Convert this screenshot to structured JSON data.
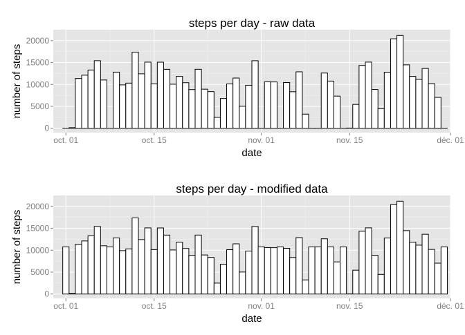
{
  "colors": {
    "panel_background": "#e5e5e5",
    "grid_major": "#ffffff",
    "grid_minor": "#f2f2f2",
    "bar_fill": "#ffffff",
    "bar_outline": "#000000",
    "tick_label": "#7f7f7f"
  },
  "chart_data": [
    {
      "type": "bar",
      "title": "steps per day - raw data",
      "xlabel": "date",
      "ylabel": "number of steps",
      "ylim": [
        -1000,
        22500
      ],
      "xlim": [
        "2012-09-29",
        "2012-12-01"
      ],
      "yticks": [
        0,
        5000,
        10000,
        15000,
        20000
      ],
      "ytick_labels": [
        "0",
        "5000",
        "10000",
        "15000",
        "20000"
      ],
      "xticks": [
        "2012-10-01",
        "2012-10-15",
        "2012-11-01",
        "2012-11-15",
        "2012-12-01"
      ],
      "xtick_labels": [
        "oct. 01",
        "oct. 15",
        "nov. 01",
        "nov. 15",
        "déc. 01"
      ],
      "grid": true,
      "dates": [
        "2012-10-01",
        "2012-10-02",
        "2012-10-03",
        "2012-10-04",
        "2012-10-05",
        "2012-10-06",
        "2012-10-07",
        "2012-10-08",
        "2012-10-09",
        "2012-10-10",
        "2012-10-11",
        "2012-10-12",
        "2012-10-13",
        "2012-10-14",
        "2012-10-15",
        "2012-10-16",
        "2012-10-17",
        "2012-10-18",
        "2012-10-19",
        "2012-10-20",
        "2012-10-21",
        "2012-10-22",
        "2012-10-23",
        "2012-10-24",
        "2012-10-25",
        "2012-10-26",
        "2012-10-27",
        "2012-10-28",
        "2012-10-29",
        "2012-10-30",
        "2012-10-31",
        "2012-11-01",
        "2012-11-02",
        "2012-11-03",
        "2012-11-04",
        "2012-11-05",
        "2012-11-06",
        "2012-11-07",
        "2012-11-08",
        "2012-11-09",
        "2012-11-10",
        "2012-11-11",
        "2012-11-12",
        "2012-11-13",
        "2012-11-14",
        "2012-11-15",
        "2012-11-16",
        "2012-11-17",
        "2012-11-18",
        "2012-11-19",
        "2012-11-20",
        "2012-11-21",
        "2012-11-22",
        "2012-11-23",
        "2012-11-24",
        "2012-11-25",
        "2012-11-26",
        "2012-11-27",
        "2012-11-28",
        "2012-11-29",
        "2012-11-30"
      ],
      "values": [
        0,
        126,
        11352,
        12116,
        13294,
        15420,
        11015,
        0,
        12811,
        9900,
        10304,
        17382,
        12426,
        15098,
        10139,
        15084,
        13452,
        10056,
        11829,
        10395,
        8821,
        13460,
        8918,
        8355,
        2492,
        6778,
        10119,
        11458,
        5018,
        9819,
        15414,
        0,
        10600,
        10571,
        0,
        10439,
        8334,
        12883,
        3219,
        0,
        0,
        12608,
        10765,
        7336,
        0,
        41,
        5441,
        14339,
        15110,
        8841,
        4472,
        12787,
        20427,
        21194,
        14478,
        11834,
        11162,
        13646,
        10183,
        7047,
        0
      ]
    },
    {
      "type": "bar",
      "title": "steps per day - modified data",
      "xlabel": "date",
      "ylabel": "number of steps",
      "ylim": [
        -1000,
        22500
      ],
      "xlim": [
        "2012-09-29",
        "2012-12-01"
      ],
      "yticks": [
        0,
        5000,
        10000,
        15000,
        20000
      ],
      "ytick_labels": [
        "0",
        "5000",
        "10000",
        "15000",
        "20000"
      ],
      "xticks": [
        "2012-10-01",
        "2012-10-15",
        "2012-11-01",
        "2012-11-15",
        "2012-12-01"
      ],
      "xtick_labels": [
        "oct. 01",
        "oct. 15",
        "nov. 01",
        "nov. 15",
        "déc. 01"
      ],
      "grid": true,
      "dates": [
        "2012-10-01",
        "2012-10-02",
        "2012-10-03",
        "2012-10-04",
        "2012-10-05",
        "2012-10-06",
        "2012-10-07",
        "2012-10-08",
        "2012-10-09",
        "2012-10-10",
        "2012-10-11",
        "2012-10-12",
        "2012-10-13",
        "2012-10-14",
        "2012-10-15",
        "2012-10-16",
        "2012-10-17",
        "2012-10-18",
        "2012-10-19",
        "2012-10-20",
        "2012-10-21",
        "2012-10-22",
        "2012-10-23",
        "2012-10-24",
        "2012-10-25",
        "2012-10-26",
        "2012-10-27",
        "2012-10-28",
        "2012-10-29",
        "2012-10-30",
        "2012-10-31",
        "2012-11-01",
        "2012-11-02",
        "2012-11-03",
        "2012-11-04",
        "2012-11-05",
        "2012-11-06",
        "2012-11-07",
        "2012-11-08",
        "2012-11-09",
        "2012-11-10",
        "2012-11-11",
        "2012-11-12",
        "2012-11-13",
        "2012-11-14",
        "2012-11-15",
        "2012-11-16",
        "2012-11-17",
        "2012-11-18",
        "2012-11-19",
        "2012-11-20",
        "2012-11-21",
        "2012-11-22",
        "2012-11-23",
        "2012-11-24",
        "2012-11-25",
        "2012-11-26",
        "2012-11-27",
        "2012-11-28",
        "2012-11-29",
        "2012-11-30"
      ],
      "values": [
        10766,
        126,
        11352,
        12116,
        13294,
        15420,
        11015,
        10766,
        12811,
        9900,
        10304,
        17382,
        12426,
        15098,
        10139,
        15084,
        13452,
        10056,
        11829,
        10395,
        8821,
        13460,
        8918,
        8355,
        2492,
        6778,
        10119,
        11458,
        5018,
        9819,
        15414,
        10766,
        10600,
        10571,
        10766,
        10439,
        8334,
        12883,
        3219,
        10766,
        10766,
        12608,
        10765,
        7336,
        10766,
        41,
        5441,
        14339,
        15110,
        8841,
        4472,
        12787,
        20427,
        21194,
        14478,
        11834,
        11162,
        13646,
        10183,
        7047,
        10766
      ]
    }
  ]
}
